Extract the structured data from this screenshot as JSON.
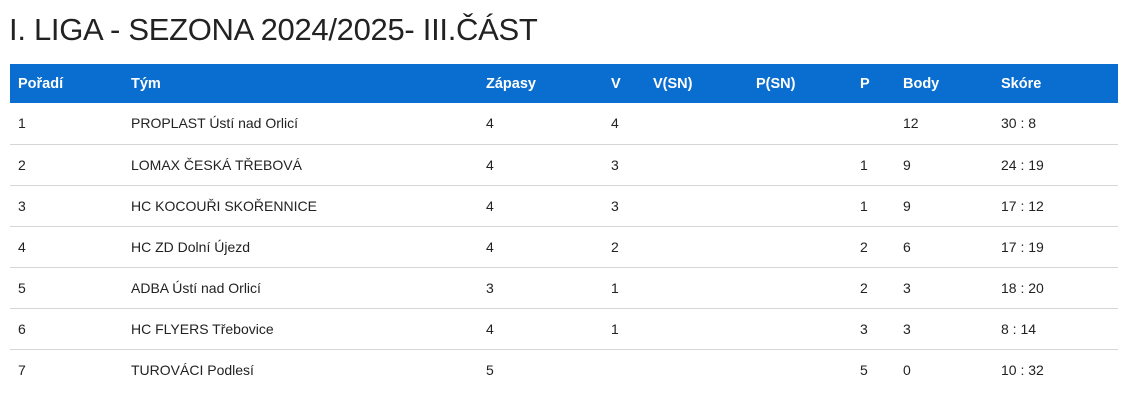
{
  "page": {
    "title": "I. LIGA - SEZONA 2024/2025- III.ČÁST"
  },
  "table": {
    "headers": {
      "rank": "Pořadí",
      "team": "Tým",
      "played": "Zápasy",
      "wins": "V",
      "wins_sn": "V(SN)",
      "losses_sn": "P(SN)",
      "losses": "P",
      "points": "Body",
      "score": "Skóre"
    },
    "header_color": "#0a6ed1",
    "rows": [
      {
        "rank": "1",
        "team": "PROPLAST Ústí nad Orlicí",
        "played": "4",
        "wins": "4",
        "wins_sn": "",
        "losses_sn": "",
        "losses": "",
        "points": "12",
        "score": "30 : 8"
      },
      {
        "rank": "2",
        "team": "LOMAX ČESKÁ TŘEBOVÁ",
        "played": "4",
        "wins": "3",
        "wins_sn": "",
        "losses_sn": "",
        "losses": "1",
        "points": "9",
        "score": "24 : 19"
      },
      {
        "rank": "3",
        "team": "HC KOCOUŘI SKOŘENNICE",
        "played": "4",
        "wins": "3",
        "wins_sn": "",
        "losses_sn": "",
        "losses": "1",
        "points": "9",
        "score": "17 : 12"
      },
      {
        "rank": "4",
        "team": "HC ZD Dolní Újezd",
        "played": "4",
        "wins": "2",
        "wins_sn": "",
        "losses_sn": "",
        "losses": "2",
        "points": "6",
        "score": "17 : 19"
      },
      {
        "rank": "5",
        "team": "ADBA Ústí nad Orlicí",
        "played": "3",
        "wins": "1",
        "wins_sn": "",
        "losses_sn": "",
        "losses": "2",
        "points": "3",
        "score": "18 : 20"
      },
      {
        "rank": "6",
        "team": "HC FLYERS Třebovice",
        "played": "4",
        "wins": "1",
        "wins_sn": "",
        "losses_sn": "",
        "losses": "3",
        "points": "3",
        "score": "8 : 14"
      },
      {
        "rank": "7",
        "team": "TUROVÁCI Podlesí",
        "played": "5",
        "wins": "",
        "wins_sn": "",
        "losses_sn": "",
        "losses": "5",
        "points": "0",
        "score": "10 : 32"
      }
    ]
  }
}
